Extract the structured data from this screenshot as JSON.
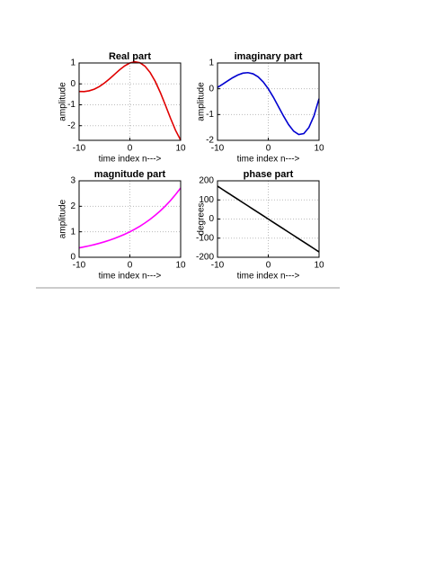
{
  "chart_data": [
    {
      "type": "line",
      "title": "Real part",
      "xlabel": "time index n--->",
      "ylabel": "amplitude",
      "x": [
        -10,
        -9,
        -8,
        -7,
        -6,
        -5,
        -4,
        -3,
        -2,
        -1,
        0,
        1,
        2,
        3,
        4,
        5,
        6,
        7,
        8,
        9,
        10
      ],
      "series": [
        {
          "color": "#e00000",
          "values": [
            -0.364,
            -0.368,
            -0.331,
            -0.251,
            -0.125,
            0.043,
            0.243,
            0.46,
            0.676,
            0.864,
            1,
            1.056,
            1.008,
            0.839,
            0.541,
            0.117,
            -0.414,
            -1.017,
            -1.641,
            -2.224,
            -2.691
          ]
        }
      ],
      "xlim": [
        -10,
        10
      ],
      "xticks": [
        -10,
        0,
        10
      ],
      "ylim": [
        -2.7,
        1
      ],
      "yticks": [
        -2,
        -1,
        0,
        1
      ],
      "grid": true
    },
    {
      "type": "line",
      "title": "imaginary part",
      "xlabel": "time index n--->",
      "ylabel": "amplitude",
      "x": [
        -10,
        -9,
        -8,
        -7,
        -6,
        -5,
        -4,
        -3,
        -2,
        -1,
        0,
        1,
        2,
        3,
        4,
        5,
        6,
        7,
        8,
        9,
        10
      ],
      "series": [
        {
          "color": "#0000d0",
          "values": [
            0.052,
            0.174,
            0.304,
            0.429,
            0.534,
            0.605,
            0.625,
            0.58,
            0.462,
            0.267,
            0,
            -0.327,
            -0.69,
            -1.057,
            -1.39,
            -1.645,
            -1.774,
            -1.738,
            -1.503,
            -1.051,
            -0.384
          ]
        }
      ],
      "xlim": [
        -10,
        10
      ],
      "xticks": [
        -10,
        0,
        10
      ],
      "ylim": [
        -2,
        1
      ],
      "yticks": [
        -2,
        -1,
        0,
        1
      ],
      "grid": true
    },
    {
      "type": "line",
      "title": "magnitude part",
      "xlabel": "time index n--->",
      "ylabel": "amplitude",
      "x": [
        -10,
        -9,
        -8,
        -7,
        -6,
        -5,
        -4,
        -3,
        -2,
        -1,
        0,
        1,
        2,
        3,
        4,
        5,
        6,
        7,
        8,
        9,
        10
      ],
      "series": [
        {
          "color": "#ff00ff",
          "values": [
            0.368,
            0.407,
            0.449,
            0.497,
            0.549,
            0.607,
            0.67,
            0.741,
            0.819,
            0.905,
            1,
            1.105,
            1.221,
            1.35,
            1.492,
            1.649,
            1.822,
            2.014,
            2.226,
            2.46,
            2.718
          ]
        }
      ],
      "xlim": [
        -10,
        10
      ],
      "xticks": [
        -10,
        0,
        10
      ],
      "ylim": [
        0,
        3
      ],
      "yticks": [
        0,
        1,
        2,
        3
      ],
      "grid": true
    },
    {
      "type": "line",
      "title": "phase part",
      "xlabel": "time index n--->",
      "ylabel": "degrees",
      "x": [
        -10,
        -9,
        -8,
        -7,
        -6,
        -5,
        -4,
        -3,
        -2,
        -1,
        0,
        1,
        2,
        3,
        4,
        5,
        6,
        7,
        8,
        9,
        10
      ],
      "series": [
        {
          "color": "#000000",
          "values": [
            171.9,
            154.7,
            137.5,
            120.3,
            103.1,
            85.9,
            68.8,
            51.6,
            34.4,
            17.2,
            0,
            -17.2,
            -34.4,
            -51.6,
            -68.8,
            -85.9,
            -103.1,
            -120.3,
            -137.5,
            -154.7,
            -171.9
          ]
        }
      ],
      "xlim": [
        -10,
        10
      ],
      "xticks": [
        -10,
        0,
        10
      ],
      "ylim": [
        -200,
        200
      ],
      "yticks": [
        -200,
        -100,
        0,
        100,
        200
      ],
      "grid": true
    }
  ]
}
